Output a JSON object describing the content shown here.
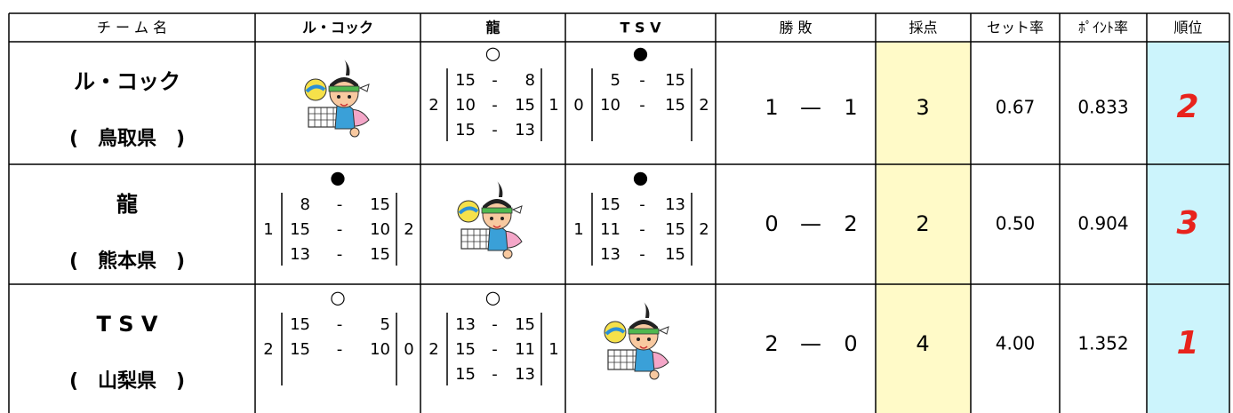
{
  "header": {
    "columns": [
      "チ ー ム 名",
      "ル・コック",
      "龍",
      "T S V",
      "勝 敗",
      "採点",
      "セット率",
      "ﾎﾟｲﾝﾄ率",
      "順位"
    ]
  },
  "set_separator": "-",
  "result_separator": "—",
  "table": {
    "rows": [
      {
        "name": "ル・コック",
        "pref": "(　鳥取県　)",
        "games": [
          null,
          {
            "mark": "○",
            "left": 2,
            "right": 1,
            "sets": [
              [
                15,
                8
              ],
              [
                10,
                15
              ],
              [
                15,
                13
              ]
            ]
          },
          {
            "mark": "●",
            "left": 0,
            "right": 2,
            "sets": [
              [
                5,
                15
              ],
              [
                10,
                15
              ]
            ]
          }
        ],
        "wins": 1,
        "losses": 1,
        "points": 3,
        "set_rate": "0.67",
        "point_rate": "0.833",
        "rank": 2
      },
      {
        "name": "龍",
        "pref": "(　熊本県　)",
        "games": [
          {
            "mark": "●",
            "left": 1,
            "right": 2,
            "sets": [
              [
                8,
                15
              ],
              [
                15,
                10
              ],
              [
                13,
                15
              ]
            ]
          },
          null,
          {
            "mark": "●",
            "left": 1,
            "right": 2,
            "sets": [
              [
                15,
                13
              ],
              [
                11,
                15
              ],
              [
                13,
                15
              ]
            ]
          }
        ],
        "wins": 0,
        "losses": 2,
        "points": 2,
        "set_rate": "0.50",
        "point_rate": "0.904",
        "rank": 3
      },
      {
        "name": "T S V",
        "pref": "(　山梨県　)",
        "games": [
          {
            "mark": "○",
            "left": 2,
            "right": 0,
            "sets": [
              [
                15,
                5
              ],
              [
                15,
                10
              ]
            ]
          },
          {
            "mark": "○",
            "left": 2,
            "right": 1,
            "sets": [
              [
                13,
                15
              ],
              [
                15,
                11
              ],
              [
                15,
                13
              ]
            ]
          },
          null
        ],
        "wins": 2,
        "losses": 0,
        "points": 4,
        "set_rate": "4.00",
        "point_rate": "1.352",
        "rank": 1
      }
    ]
  }
}
